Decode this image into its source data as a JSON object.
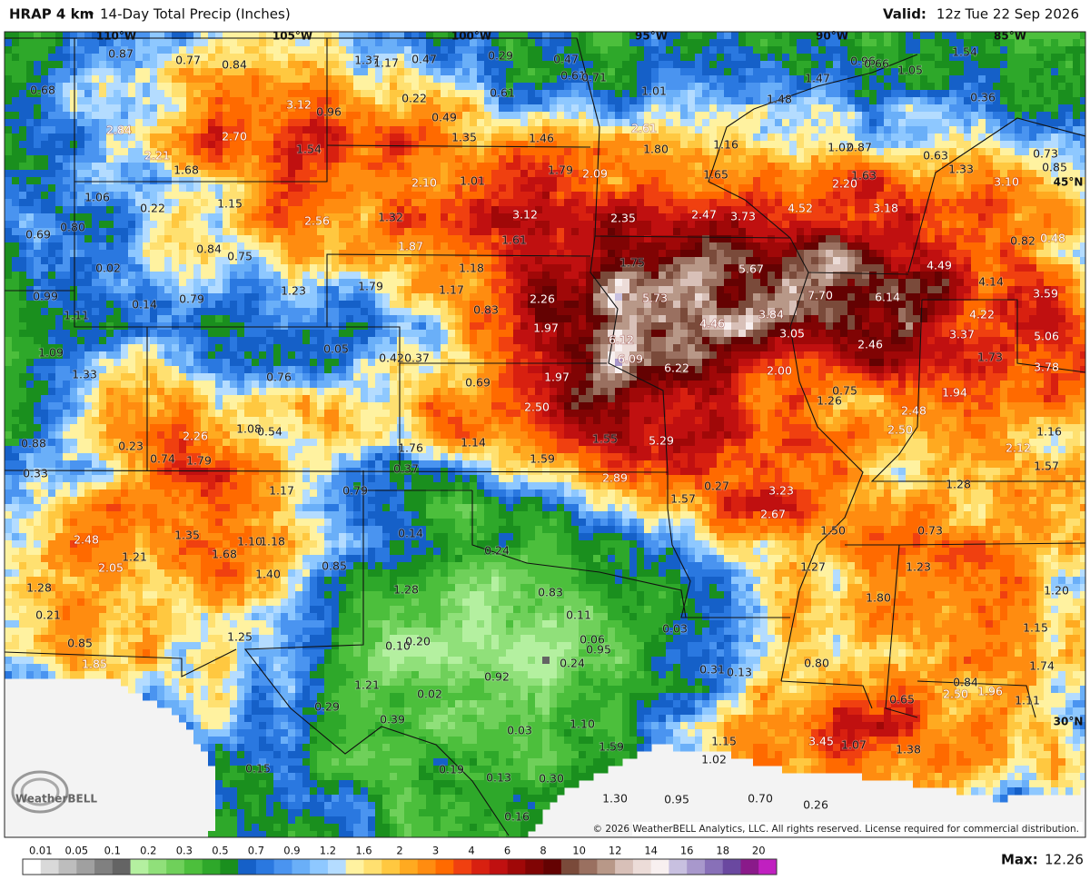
{
  "header": {
    "model": "HRAP 4 km",
    "bullet": "•",
    "product": "14-Day Total Precip (Inches)",
    "valid_label": "Valid:",
    "valid_time": "12z Tue 22 Sep 2026"
  },
  "map": {
    "gridlines": [
      "110°W",
      "105°W",
      "100°W",
      "95°W",
      "90°W",
      "85°W",
      "45°N",
      "30°N"
    ],
    "labels": [
      "0.87",
      "0.77",
      "0.84",
      "1.37",
      "1.17",
      "0.47",
      "0.29",
      "0.47",
      "0.61",
      "0.71",
      "1.01",
      "1.47",
      "0.96",
      "0.66",
      "1.05",
      "1.54",
      "0.36",
      "0.68",
      "3.12",
      "0.96",
      "0.22",
      "0.61",
      "0.49",
      "1.48",
      "2.84",
      "2.70",
      "1.35",
      "1.46",
      "2.61",
      "1.16",
      "1.80",
      "1.02",
      "0.87",
      "0.63",
      "0.73",
      "0.85",
      "2.21",
      "1.54",
      "1.68",
      "1.79",
      "2.09",
      "1.65",
      "1.63",
      "1.33",
      "2.20",
      "3.10",
      "1.01",
      "2.10",
      "1.06",
      "0.22",
      "1.15",
      "3.12",
      "2.35",
      "2.47",
      "3.73",
      "4.52",
      "3.18",
      "0.80",
      "2.56",
      "1.32",
      "0.69",
      "1.61",
      "1.87",
      "0.82",
      "0.48",
      "0.84",
      "0.75",
      "1.75",
      "5.67",
      "4.49",
      "4.14",
      "0.02",
      "1.18",
      "1.79",
      "1.17",
      "1.23",
      "2.26",
      "5.73",
      "7.70",
      "6.14",
      "3.59",
      "0.99",
      "0.14",
      "0.79",
      "0.83",
      "4.22",
      "1.11",
      "4.46",
      "3.84",
      "1.97",
      "3.05",
      "6.12",
      "3.37",
      "5.06",
      "2.46",
      "1.09",
      "0.05",
      "0.42",
      "0.37",
      "6.09",
      "1.73",
      "3.78",
      "1.33",
      "0.76",
      "6.22",
      "2.00",
      "1.97",
      "0.69",
      "0.75",
      "1.26",
      "1.94",
      "2.48",
      "2.50",
      "2.50",
      "1.08",
      "0.54",
      "2.26",
      "1.55",
      "5.29",
      "1.16",
      "0.88",
      "0.23",
      "1.76",
      "1.14",
      "2.12",
      "0.74",
      "1.79",
      "1.59",
      "0.37",
      "1.57",
      "0.33",
      "2.89",
      "1.28",
      "1.17",
      "0.79",
      "0.27",
      "3.23",
      "1.57",
      "2.67",
      "0.14",
      "1.50",
      "0.73",
      "2.48",
      "1.35",
      "1.68",
      "1.10",
      "1.18",
      "0.24",
      "0.85",
      "2.05",
      "1.21",
      "1.40",
      "1.27",
      "1.23",
      "1.28",
      "0.83",
      "1.28",
      "1.80",
      "1.20",
      "0.21",
      "0.11",
      "0.03",
      "1.15",
      "0.85",
      "1.25",
      "0.10",
      "0.20",
      "0.06",
      "0.95",
      "1.85",
      "0.24",
      "0.31",
      "0.13",
      "0.80",
      "1.74",
      "0.92",
      "1.21",
      "0.02",
      "0.84",
      "2.50",
      "1.96",
      "0.65",
      "1.11",
      "0.29",
      "0.39",
      "0.03",
      "1.10",
      "1.59",
      "1.15",
      "3.45",
      "1.07",
      "1.38",
      "1.02",
      "0.19",
      "0.13",
      "0.30",
      "0.15",
      "1.30",
      "0.95",
      "0.70",
      "0.26",
      "0.16"
    ]
  },
  "logo": "WeatherBELL",
  "copyright": "© 2026 WeatherBELL Analytics, LLC. All rights reserved. License required for commercial distribution.",
  "colorbar": {
    "labels": [
      "0.01",
      "0.05",
      "0.1",
      "0.2",
      "0.3",
      "0.5",
      "0.7",
      "0.9",
      "1.2",
      "1.6",
      "2",
      "3",
      "4",
      "6",
      "8",
      "10",
      "12",
      "14",
      "16",
      "18",
      "20"
    ]
  },
  "max": {
    "label": "Max:",
    "value": "12.26"
  }
}
